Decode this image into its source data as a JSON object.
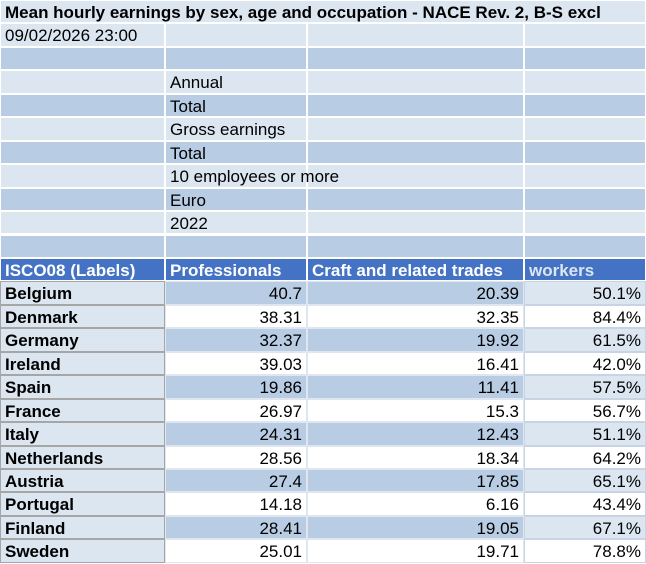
{
  "sheet": {
    "title": "Mean hourly earnings by sex, age and occupation - NACE Rev. 2, B-S excl",
    "timestamp": "09/02/2026 23:00",
    "parameters": [
      "Annual",
      "Total",
      "Gross earnings",
      "Total",
      "10 employees or more",
      "Euro",
      "2022"
    ],
    "table": {
      "header": [
        "ISCO08 (Labels)",
        "Professionals",
        "Craft and related trades",
        "workers"
      ],
      "rows": [
        [
          "Belgium",
          "40.7",
          "20.39",
          "50.1%"
        ],
        [
          "Denmark",
          "38.31",
          "32.35",
          "84.4%"
        ],
        [
          "Germany",
          "32.37",
          "19.92",
          "61.5%"
        ],
        [
          "Ireland",
          "39.03",
          "16.41",
          "42.0%"
        ],
        [
          "Spain",
          "19.86",
          "11.41",
          "57.5%"
        ],
        [
          "France",
          "26.97",
          "15.3",
          "56.7%"
        ],
        [
          "Italy",
          "24.31",
          "12.43",
          "51.1%"
        ],
        [
          "Netherlands",
          "28.56",
          "18.34",
          "64.2%"
        ],
        [
          "Austria",
          "27.4",
          "17.85",
          "65.1%"
        ],
        [
          "Portugal",
          "14.18",
          "6.16",
          "43.4%"
        ],
        [
          "Finland",
          "28.41",
          "19.05",
          "67.1%"
        ],
        [
          "Sweden",
          "25.01",
          "19.71",
          "78.8%"
        ]
      ]
    }
  }
}
